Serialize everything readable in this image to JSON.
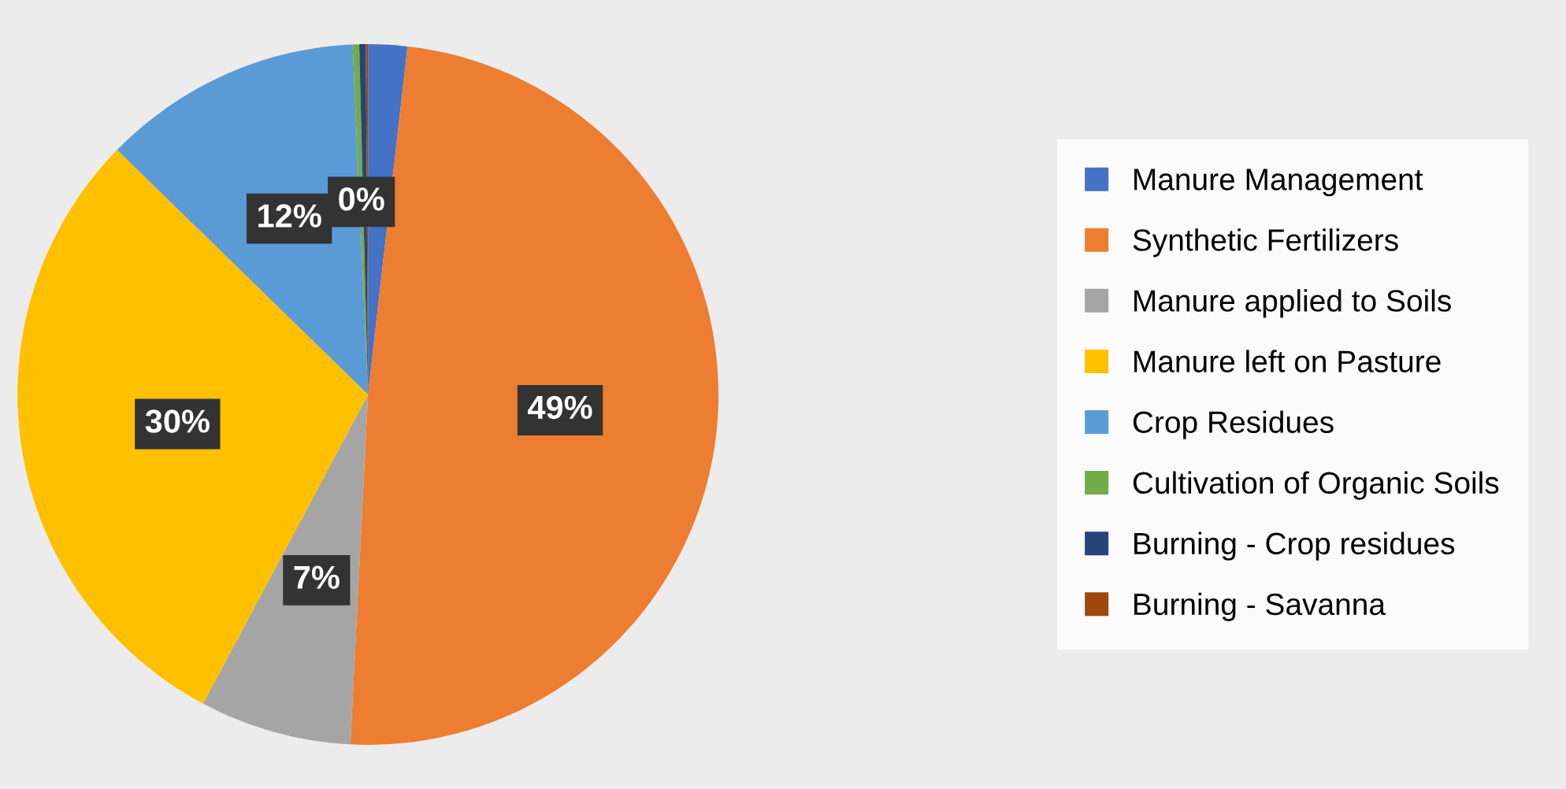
{
  "chart_data": {
    "type": "pie",
    "categories": [
      "Manure Management",
      "Synthetic Fertilizers",
      "Manure applied to Soils",
      "Manure left on Pasture",
      "Crop Residues",
      "Cultivation of Organic Soils",
      "Burning - Crop residues",
      "Burning - Savanna"
    ],
    "values": [
      1.8,
      49,
      7,
      29.5,
      12,
      0.3,
      0.3,
      0.1
    ],
    "colors": [
      "#4472c4",
      "#ed7d31",
      "#a5a5a5",
      "#ffc000",
      "#5b9bd5",
      "#70ad47",
      "#264478",
      "#9e480e"
    ],
    "value_labels": [
      null,
      "49%",
      "7%",
      "30%",
      "12%",
      "0%",
      null,
      null
    ],
    "legend": "right"
  }
}
